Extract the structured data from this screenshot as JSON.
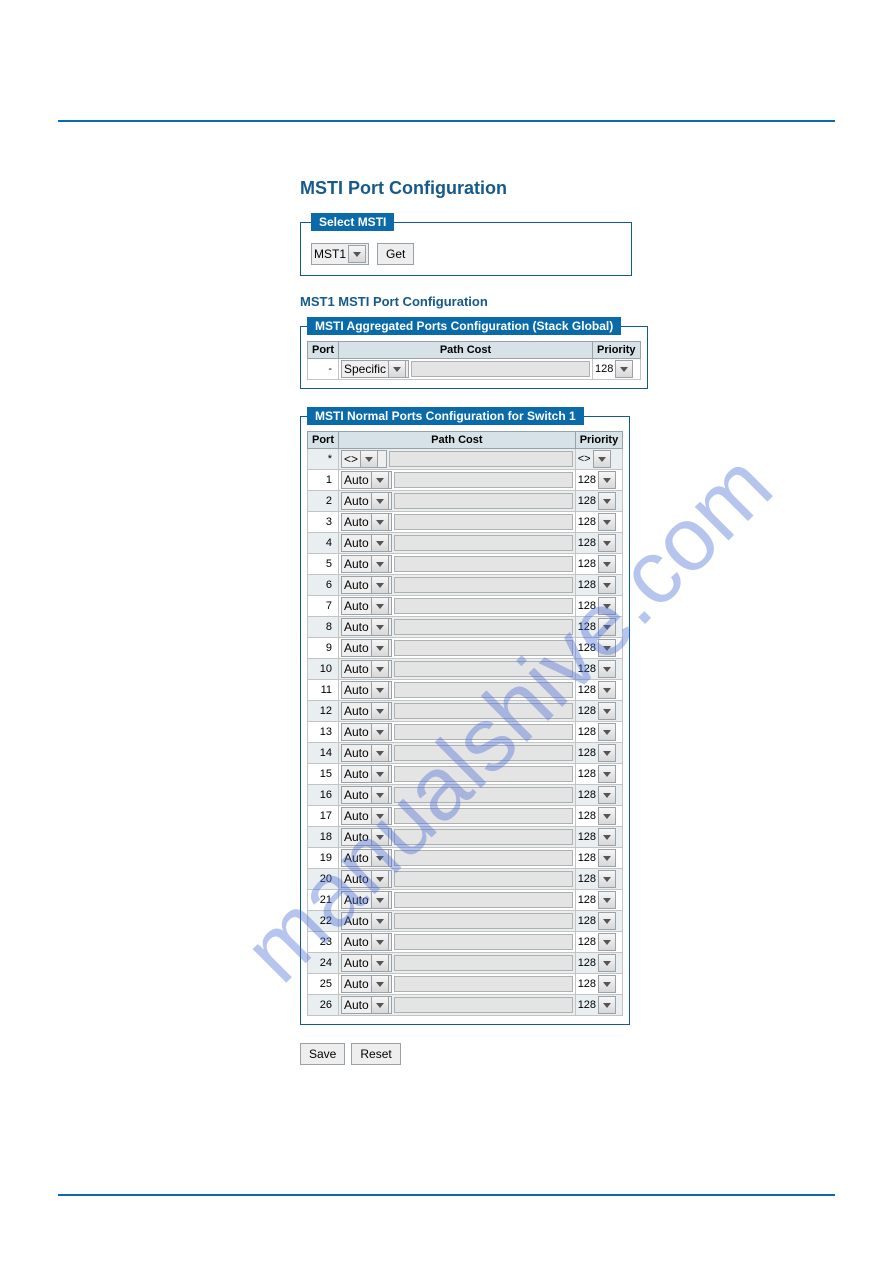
{
  "colors": {
    "rule": "#0a6ba8",
    "title": "#155a8a",
    "legend_bg": "#0a6ba8",
    "legend_fg": "#ffffff",
    "th_bg": "#d6e2e8",
    "row_alt_bg": "#e9eef1",
    "border": "#9aa1a8",
    "watermark": "#4b6fd6"
  },
  "page_title": "MSTI Port Configuration",
  "select_msti": {
    "legend": "Select MSTI",
    "selected": "MST1",
    "get_label": "Get"
  },
  "sub_title": "MST1 MSTI Port Configuration",
  "agg_section": {
    "legend": "MSTI Aggregated Ports Configuration (Stack Global)",
    "headers": {
      "port": "Port",
      "pathcost": "Path Cost",
      "priority": "Priority"
    },
    "row": {
      "port": "-",
      "pathcost_mode": "Specific",
      "pathcost_value": "",
      "priority": "128"
    }
  },
  "normal_section": {
    "legend": "MSTI Normal Ports Configuration for Switch 1",
    "headers": {
      "port": "Port",
      "pathcost": "Path Cost",
      "priority": "Priority"
    },
    "rows": [
      {
        "port": "*",
        "pathcost_mode": "<>",
        "pathcost_value": "",
        "priority": "<>"
      },
      {
        "port": "1",
        "pathcost_mode": "Auto",
        "pathcost_value": "",
        "priority": "128"
      },
      {
        "port": "2",
        "pathcost_mode": "Auto",
        "pathcost_value": "",
        "priority": "128"
      },
      {
        "port": "3",
        "pathcost_mode": "Auto",
        "pathcost_value": "",
        "priority": "128"
      },
      {
        "port": "4",
        "pathcost_mode": "Auto",
        "pathcost_value": "",
        "priority": "128"
      },
      {
        "port": "5",
        "pathcost_mode": "Auto",
        "pathcost_value": "",
        "priority": "128"
      },
      {
        "port": "6",
        "pathcost_mode": "Auto",
        "pathcost_value": "",
        "priority": "128"
      },
      {
        "port": "7",
        "pathcost_mode": "Auto",
        "pathcost_value": "",
        "priority": "128"
      },
      {
        "port": "8",
        "pathcost_mode": "Auto",
        "pathcost_value": "",
        "priority": "128"
      },
      {
        "port": "9",
        "pathcost_mode": "Auto",
        "pathcost_value": "",
        "priority": "128"
      },
      {
        "port": "10",
        "pathcost_mode": "Auto",
        "pathcost_value": "",
        "priority": "128"
      },
      {
        "port": "11",
        "pathcost_mode": "Auto",
        "pathcost_value": "",
        "priority": "128"
      },
      {
        "port": "12",
        "pathcost_mode": "Auto",
        "pathcost_value": "",
        "priority": "128"
      },
      {
        "port": "13",
        "pathcost_mode": "Auto",
        "pathcost_value": "",
        "priority": "128"
      },
      {
        "port": "14",
        "pathcost_mode": "Auto",
        "pathcost_value": "",
        "priority": "128"
      },
      {
        "port": "15",
        "pathcost_mode": "Auto",
        "pathcost_value": "",
        "priority": "128"
      },
      {
        "port": "16",
        "pathcost_mode": "Auto",
        "pathcost_value": "",
        "priority": "128"
      },
      {
        "port": "17",
        "pathcost_mode": "Auto",
        "pathcost_value": "",
        "priority": "128"
      },
      {
        "port": "18",
        "pathcost_mode": "Auto",
        "pathcost_value": "",
        "priority": "128"
      },
      {
        "port": "19",
        "pathcost_mode": "Auto",
        "pathcost_value": "",
        "priority": "128"
      },
      {
        "port": "20",
        "pathcost_mode": "Auto",
        "pathcost_value": "",
        "priority": "128"
      },
      {
        "port": "21",
        "pathcost_mode": "Auto",
        "pathcost_value": "",
        "priority": "128"
      },
      {
        "port": "22",
        "pathcost_mode": "Auto",
        "pathcost_value": "",
        "priority": "128"
      },
      {
        "port": "23",
        "pathcost_mode": "Auto",
        "pathcost_value": "",
        "priority": "128"
      },
      {
        "port": "24",
        "pathcost_mode": "Auto",
        "pathcost_value": "",
        "priority": "128"
      },
      {
        "port": "25",
        "pathcost_mode": "Auto",
        "pathcost_value": "",
        "priority": "128"
      },
      {
        "port": "26",
        "pathcost_mode": "Auto",
        "pathcost_value": "",
        "priority": "128"
      }
    ]
  },
  "buttons": {
    "save": "Save",
    "reset": "Reset"
  },
  "watermark_text": "manualshive.com"
}
